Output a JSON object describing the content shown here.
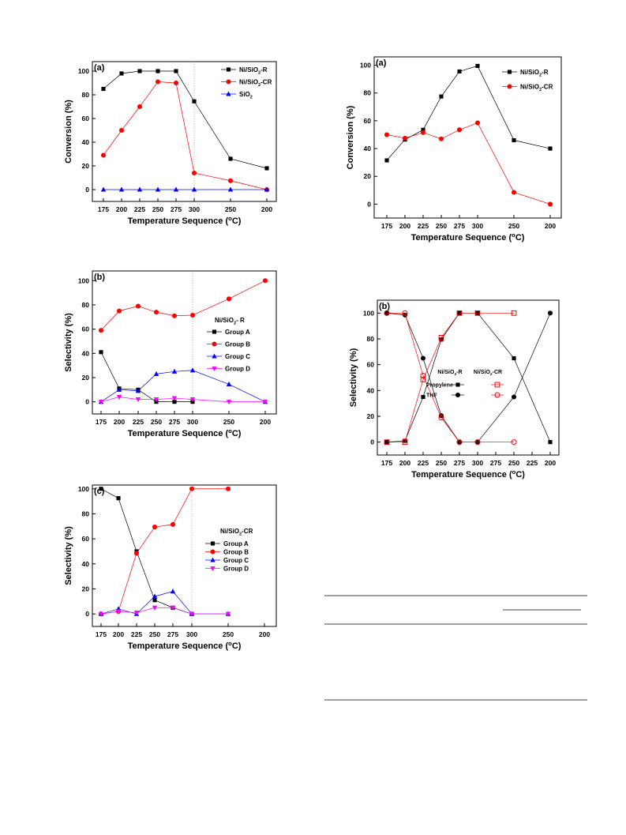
{
  "chart_data": [
    {
      "id": "A",
      "type": "line",
      "panel_label": "(a)",
      "xlabel": "Temperature Sequence (°C)",
      "ylabel": "Conversion (%)",
      "categories": [
        "175",
        "200",
        "225",
        "250",
        "275",
        "300",
        "250",
        "200"
      ],
      "ylim": [
        -10,
        108
      ],
      "yticks": [
        0,
        20,
        40,
        60,
        80,
        100
      ],
      "vline_index": 5,
      "legend": "top-right",
      "series": [
        {
          "name": "Ni/SiO2-R",
          "color": "#000000",
          "marker": "square",
          "x": [
            0,
            1,
            2,
            3,
            4,
            5,
            6,
            7
          ],
          "values": [
            85,
            98,
            100,
            100,
            100,
            74.5,
            26,
            18
          ]
        },
        {
          "name": "Ni/SiO2-CR",
          "color": "#ff0000",
          "marker": "circle",
          "x": [
            0,
            1,
            2,
            3,
            4,
            5,
            6,
            7
          ],
          "values": [
            29,
            50,
            70,
            91,
            90,
            14,
            7.5,
            0
          ]
        },
        {
          "name": "SiO2",
          "color": "#0000ff",
          "marker": "triangle",
          "x": [
            0,
            1,
            2,
            3,
            4,
            5,
            6,
            7
          ],
          "values": [
            0,
            0,
            0,
            0,
            0,
            0,
            0,
            0
          ]
        }
      ]
    },
    {
      "id": "B",
      "type": "line",
      "panel_label": "(b)",
      "xlabel": "Temperature Sequence (°C)",
      "ylabel": "Selectivity (%)",
      "categories": [
        "175",
        "200",
        "225",
        "250",
        "275",
        "300",
        "250",
        "200"
      ],
      "ylim": [
        -10,
        108
      ],
      "yticks": [
        0,
        20,
        40,
        60,
        80,
        100
      ],
      "vline_index": 5,
      "legend_title": "Ni/SiO2- R",
      "series": [
        {
          "name": "Group A",
          "color": "#000000",
          "marker": "square",
          "x": [
            0,
            1,
            2,
            3,
            4,
            5
          ],
          "values": [
            41,
            11,
            10,
            0,
            0,
            0
          ]
        },
        {
          "name": "Group B",
          "color": "#ff0000",
          "marker": "circle",
          "x": [
            0,
            1,
            2,
            3,
            4,
            5,
            6,
            7
          ],
          "values": [
            59,
            75,
            79,
            74,
            71,
            71.5,
            85,
            100
          ]
        },
        {
          "name": "Group C",
          "color": "#0000ff",
          "marker": "triangle",
          "x": [
            0,
            1,
            2,
            3,
            4,
            5,
            6,
            7
          ],
          "values": [
            0,
            10,
            9,
            23,
            25,
            26,
            14.5,
            0
          ]
        },
        {
          "name": "Group D",
          "color": "#ff00ff",
          "marker": "triangle-down",
          "x": [
            0,
            1,
            2,
            3,
            4,
            5,
            6,
            7
          ],
          "values": [
            0,
            4,
            2,
            2,
            3,
            2,
            0,
            0
          ]
        }
      ]
    },
    {
      "id": "C",
      "type": "line",
      "panel_label": "(c)",
      "xlabel": "Temperature Sequence (°C)",
      "ylabel": "Selectivity (%)",
      "categories": [
        "175",
        "200",
        "225",
        "250",
        "275",
        "300",
        "250",
        "200"
      ],
      "ylim": [
        -10,
        103
      ],
      "yticks": [
        0,
        20,
        40,
        60,
        80,
        100
      ],
      "vline_index": 5,
      "legend_title": "Ni/SiO2-CR",
      "series": [
        {
          "name": "Group A",
          "color": "#000000",
          "marker": "square",
          "x": [
            0,
            1,
            2,
            3,
            4,
            5
          ],
          "values": [
            100,
            92.5,
            50,
            11,
            5,
            0
          ]
        },
        {
          "name": "Group B",
          "color": "#ff0000",
          "marker": "circle",
          "x": [
            0,
            1,
            2,
            3,
            4,
            5,
            6
          ],
          "values": [
            0,
            2,
            48.5,
            69.5,
            71.5,
            100,
            100
          ]
        },
        {
          "name": "Group C",
          "color": "#0000ff",
          "marker": "triangle",
          "x": [
            0,
            1,
            2,
            3,
            4,
            5,
            6
          ],
          "values": [
            0,
            4,
            0,
            14,
            18,
            0,
            0
          ]
        },
        {
          "name": "Group D",
          "color": "#ff00ff",
          "marker": "triangle-down",
          "x": [
            0,
            1,
            2,
            3,
            4,
            5,
            6
          ],
          "values": [
            0,
            2,
            1,
            5,
            5,
            0,
            0
          ]
        }
      ]
    },
    {
      "id": "D",
      "type": "line",
      "panel_label": "(a)",
      "xlabel": "Temperature Sequence (°C)",
      "ylabel": "Conversion (%)",
      "categories": [
        "175",
        "200",
        "225",
        "250",
        "275",
        "300",
        "250",
        "200"
      ],
      "ylim": [
        -10,
        106
      ],
      "yticks": [
        0,
        20,
        40,
        60,
        80,
        100
      ],
      "legend": "top-right",
      "series": [
        {
          "name": "Ni/SiO2-R",
          "color": "#000000",
          "marker": "square",
          "x": [
            0,
            1,
            2,
            3,
            4,
            5,
            6,
            7
          ],
          "values": [
            31.5,
            46.5,
            53.5,
            77.5,
            95.5,
            99.5,
            46,
            40
          ]
        },
        {
          "name": "Ni/SiO2-CR",
          "color": "#ff0000",
          "marker": "circle",
          "x": [
            0,
            1,
            2,
            3,
            4,
            5,
            6,
            7
          ],
          "values": [
            50,
            47.5,
            51.5,
            47,
            53.5,
            58.5,
            8.5,
            0
          ]
        }
      ]
    },
    {
      "id": "E",
      "type": "line",
      "panel_label": "(b)",
      "xlabel": "Temperature Sequence (°C)",
      "ylabel": "Selectivity (%)",
      "categories": [
        "175",
        "200",
        "225",
        "250",
        "275",
        "300",
        "275",
        "250",
        "225",
        "200"
      ],
      "ylim": [
        -10,
        110
      ],
      "yticks": [
        0,
        20,
        40,
        60,
        80,
        100
      ],
      "legend_headers": [
        "Ni/SiO2-R",
        "Ni/SiO2-CR"
      ],
      "legend_rows": [
        "Propylene",
        "THF"
      ],
      "series": [
        {
          "name": "Propylene",
          "group": "Ni/SiO2-R",
          "color": "#000000",
          "marker": "square",
          "x": [
            0,
            1,
            2,
            3,
            4,
            5,
            7,
            9
          ],
          "values": [
            0,
            1,
            35,
            79.5,
            100,
            100,
            65,
            0
          ]
        },
        {
          "name": "THF",
          "group": "Ni/SiO2-R",
          "color": "#000000",
          "marker": "circle",
          "x": [
            0,
            1,
            2,
            3,
            4,
            5,
            7,
            9
          ],
          "values": [
            100,
            98.5,
            65,
            20.5,
            0,
            0,
            35,
            100
          ]
        },
        {
          "name": "Propylene",
          "group": "Ni/SiO2-CR",
          "color": "#ff0000",
          "marker": "square-open",
          "x": [
            0,
            1,
            2,
            3,
            4,
            5,
            7
          ],
          "values": [
            0,
            0,
            48.5,
            81,
            100,
            100,
            100
          ]
        },
        {
          "name": "THF",
          "group": "Ni/SiO2-CR",
          "color": "#ff0000",
          "marker": "circle-open",
          "x": [
            0,
            1,
            2,
            3,
            4,
            5,
            7
          ],
          "values": [
            100,
            100,
            51.5,
            19,
            0,
            0,
            0
          ]
        }
      ]
    }
  ]
}
